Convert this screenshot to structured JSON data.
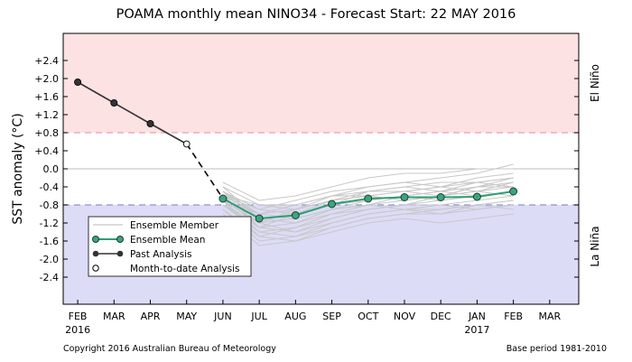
{
  "chart_data": {
    "type": "line",
    "title": "POAMA monthly mean NINO34 - Forecast Start: 22 MAY 2016",
    "ylabel": "SST anomaly (°C)",
    "ylim": [
      -3.0,
      3.0
    ],
    "yticks": [
      "+2.4",
      "+2.0",
      "+1.6",
      "+1.2",
      "+0.8",
      "+0.4",
      "0.0",
      "-0.4",
      "-0.8",
      "-1.2",
      "-1.6",
      "-2.0",
      "-2.4"
    ],
    "ytick_values": [
      2.4,
      2.0,
      1.6,
      1.2,
      0.8,
      0.4,
      0.0,
      -0.4,
      -0.8,
      -1.2,
      -1.6,
      -2.0,
      -2.4
    ],
    "categories": [
      "FEB",
      "MAR",
      "APR",
      "MAY",
      "JUN",
      "JUL",
      "AUG",
      "SEP",
      "OCT",
      "NOV",
      "DEC",
      "JAN",
      "FEB",
      "MAR"
    ],
    "xlim": [
      -0.4,
      13.8
    ],
    "year_labels": [
      {
        "index": 0,
        "label": "2016"
      },
      {
        "index": 11,
        "label": "2017"
      }
    ],
    "thresholds": {
      "el_nino": 0.8,
      "la_nina": -0.8
    },
    "region_labels": {
      "el_nino": "El Niño",
      "la_nina": "La Niña"
    },
    "colors": {
      "el_nino_fill": "#fde2e4",
      "la_nina_fill": "#dcdcf7",
      "el_nino_line": "#ef9fa8",
      "la_nina_line": "#8f8fd6",
      "ensemble_mean": "#2e9e73",
      "ensemble_mean_marker": "#3aa57e",
      "past": "#333333",
      "member": "#c8c8c8"
    },
    "series": [
      {
        "name": "Past Analysis",
        "x": [
          0,
          1,
          2
        ],
        "values": [
          1.92,
          1.46,
          1.0
        ]
      },
      {
        "name": "Month-to-date Analysis",
        "x": [
          3
        ],
        "values": [
          0.55
        ]
      },
      {
        "name": "Ensemble Mean",
        "x": [
          4,
          5,
          6,
          7,
          8,
          9,
          10,
          11,
          12
        ],
        "values": [
          -0.66,
          -1.1,
          -1.03,
          -0.78,
          -0.66,
          -0.63,
          -0.63,
          -0.62,
          -0.5
        ]
      }
    ],
    "ensemble_members": [
      [
        -0.5,
        -1.3,
        -1.4,
        -1.1,
        -0.9,
        -0.8,
        -0.7,
        -0.6,
        -0.5
      ],
      [
        -0.7,
        -1.5,
        -1.6,
        -1.3,
        -1.1,
        -1.0,
        -1.0,
        -0.9,
        -0.8
      ],
      [
        -0.6,
        -0.9,
        -0.7,
        -0.5,
        -0.4,
        -0.3,
        -0.2,
        -0.1,
        0.1
      ],
      [
        -0.8,
        -1.2,
        -1.1,
        -0.9,
        -0.8,
        -0.7,
        -0.6,
        -0.4,
        -0.3
      ],
      [
        -0.4,
        -0.8,
        -0.8,
        -0.6,
        -0.5,
        -0.4,
        -0.5,
        -0.3,
        -0.2
      ],
      [
        -0.9,
        -1.6,
        -1.5,
        -1.2,
        -1.0,
        -0.9,
        -0.9,
        -0.8,
        -0.7
      ],
      [
        -0.7,
        -1.0,
        -0.9,
        -0.7,
        -0.6,
        -0.5,
        -0.4,
        -0.5,
        -0.4
      ],
      [
        -0.5,
        -1.1,
        -1.2,
        -1.0,
        -0.8,
        -0.9,
        -0.8,
        -0.7,
        -0.6
      ],
      [
        -0.3,
        -0.7,
        -0.6,
        -0.4,
        -0.2,
        -0.1,
        -0.1,
        0.0,
        0.0
      ],
      [
        -1.0,
        -1.7,
        -1.6,
        -1.4,
        -1.2,
        -1.1,
        -1.2,
        -1.1,
        -1.0
      ],
      [
        -0.6,
        -1.3,
        -1.0,
        -0.8,
        -0.7,
        -0.6,
        -0.7,
        -0.6,
        -0.5
      ],
      [
        -0.8,
        -1.4,
        -1.3,
        -1.1,
        -0.9,
        -0.8,
        -0.8,
        -0.9,
        -0.8
      ],
      [
        -0.5,
        -0.9,
        -1.0,
        -0.8,
        -0.5,
        -0.4,
        -0.3,
        -0.3,
        -0.2
      ],
      [
        -0.7,
        -1.2,
        -1.4,
        -1.2,
        -1.0,
        -0.9,
        -1.0,
        -0.8,
        -0.7
      ],
      [
        -0.6,
        -1.0,
        -0.8,
        -0.6,
        -0.6,
        -0.5,
        -0.4,
        -0.3,
        -0.4
      ],
      [
        -0.9,
        -1.5,
        -1.3,
        -1.0,
        -0.9,
        -0.8,
        -0.6,
        -0.5,
        -0.6
      ],
      [
        -0.4,
        -1.1,
        -1.0,
        -0.7,
        -0.6,
        -0.7,
        -0.6,
        -0.5,
        -0.3
      ],
      [
        -0.8,
        -1.3,
        -1.2,
        -0.9,
        -0.7,
        -0.6,
        -0.5,
        -0.6,
        -0.5
      ],
      [
        -0.6,
        -0.8,
        -0.9,
        -0.7,
        -0.5,
        -0.5,
        -0.6,
        -0.4,
        -0.4
      ],
      [
        -0.7,
        -1.4,
        -1.5,
        -1.3,
        -1.1,
        -1.0,
        -0.9,
        -0.8,
        -0.9
      ],
      [
        -0.5,
        -1.0,
        -1.1,
        -0.9,
        -0.8,
        -0.6,
        -0.5,
        -0.4,
        -0.2
      ],
      [
        -0.6,
        -1.2,
        -0.9,
        -0.6,
        -0.4,
        -0.3,
        -0.4,
        -0.2,
        -0.1
      ]
    ],
    "legend": {
      "placement": "lower-left",
      "items": [
        {
          "label": "Ensemble Member",
          "style": "member"
        },
        {
          "label": "Ensemble Mean",
          "style": "mean"
        },
        {
          "label": "Past Analysis",
          "style": "past"
        },
        {
          "label": "Month-to-date Analysis",
          "style": "mtd"
        }
      ]
    }
  },
  "footer": {
    "copyright": "Copyright 2016 Australian Bureau of Meteorology",
    "base_period": "Base period 1981-2010"
  }
}
